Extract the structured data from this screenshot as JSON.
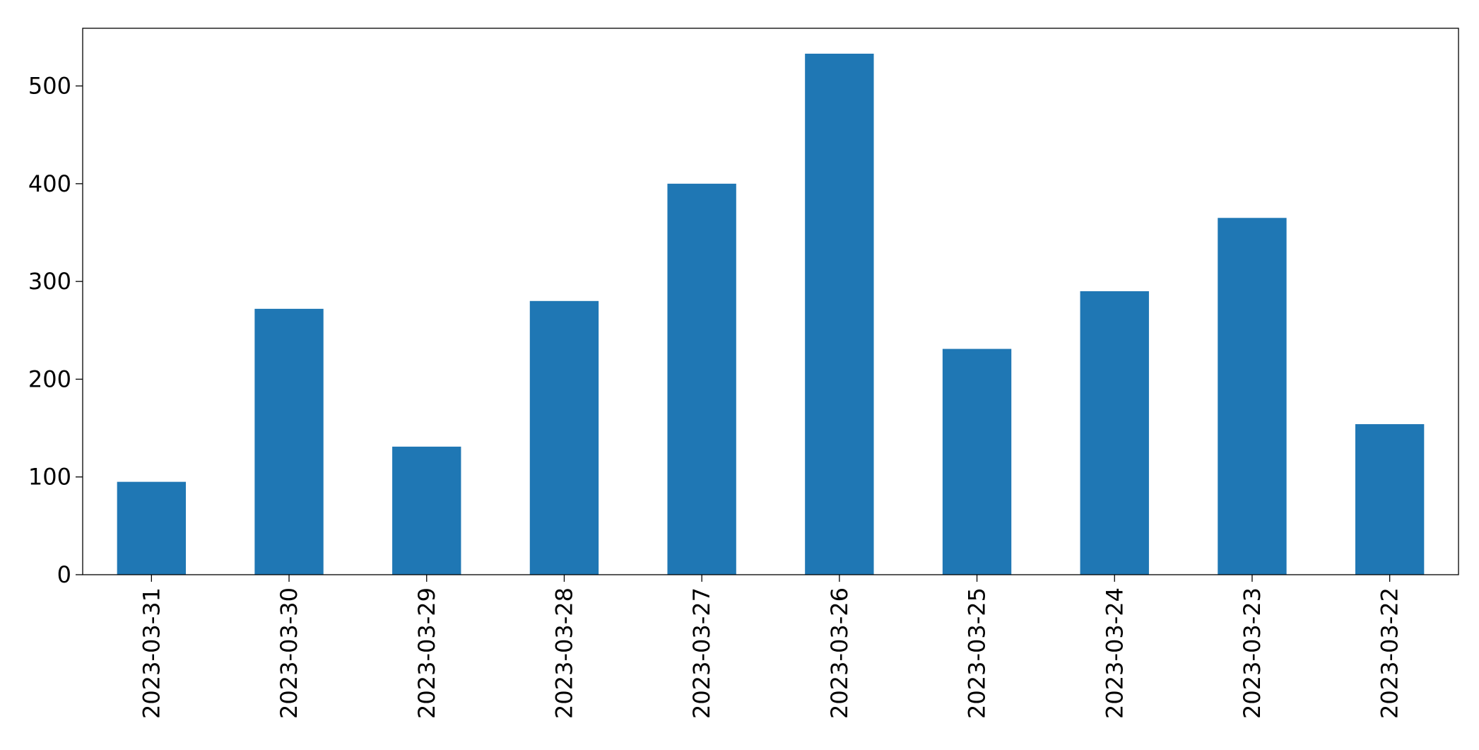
{
  "chart_data": {
    "type": "bar",
    "categories": [
      "2023-03-31",
      "2023-03-30",
      "2023-03-29",
      "2023-03-28",
      "2023-03-27",
      "2023-03-26",
      "2023-03-25",
      "2023-03-24",
      "2023-03-23",
      "2023-03-22"
    ],
    "values": [
      95,
      272,
      131,
      280,
      400,
      533,
      231,
      290,
      365,
      154
    ],
    "color": "#1f77b4",
    "ylim": [
      0,
      559
    ],
    "yticks": [
      0,
      100,
      200,
      300,
      400,
      500
    ],
    "grid": false
  }
}
